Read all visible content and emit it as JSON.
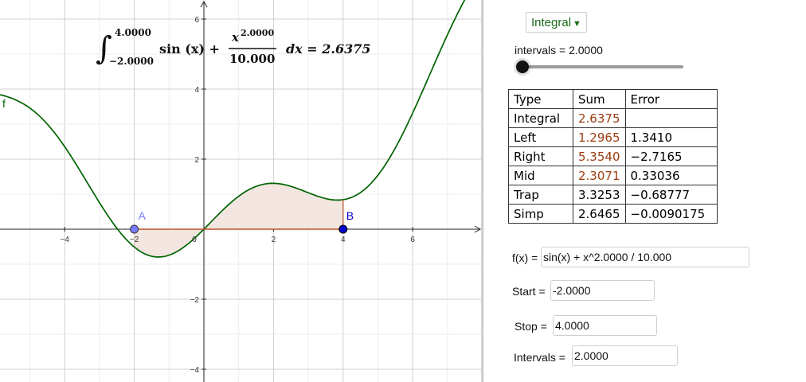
{
  "graph": {
    "function_label": "f",
    "point_a_label": "A",
    "point_b_label": "B",
    "x_ticks": [
      "−4",
      "−2",
      "0",
      "2",
      "4",
      "6"
    ],
    "y_ticks": [
      "6",
      "4",
      "2",
      "−2",
      "−4"
    ],
    "integral": {
      "upper": "4.0000",
      "lower": "−2.0000",
      "body": "sin (x) +",
      "numerator": "x",
      "exponent": "2.0000",
      "denominator": "10.000",
      "dx": "dx = 2.6375"
    },
    "colors": {
      "curve": "#006400",
      "fill": "#f3e6e0",
      "point_a": "#7b7bff",
      "point_b": "#0000cc"
    }
  },
  "panel": {
    "dropdown_label": "Integral",
    "slider_label": "intervals = 2.0000",
    "slider_value": 2,
    "table": {
      "headers": [
        "Type",
        "Sum",
        "Error"
      ],
      "rows": [
        [
          "Integral",
          "2.6375",
          ""
        ],
        [
          "Left",
          "1.2965",
          "1.3410"
        ],
        [
          "Right",
          "5.3540",
          "−2.7165"
        ],
        [
          "Mid",
          "2.3071",
          "0.33036"
        ],
        [
          "Trap",
          "3.3253",
          "−0.68777"
        ],
        [
          "Simp",
          "2.6465",
          "−0.0090175"
        ]
      ]
    },
    "fields": {
      "fx_label": "f(x) =",
      "fx_value": "sin(x) + x^2.0000 / 10.000",
      "start_label": "Start =",
      "start_value": "-2.0000",
      "stop_label": "Stop =",
      "stop_value": "4.0000",
      "intervals_label": "Intervals =",
      "intervals_value": "2.0000"
    }
  }
}
